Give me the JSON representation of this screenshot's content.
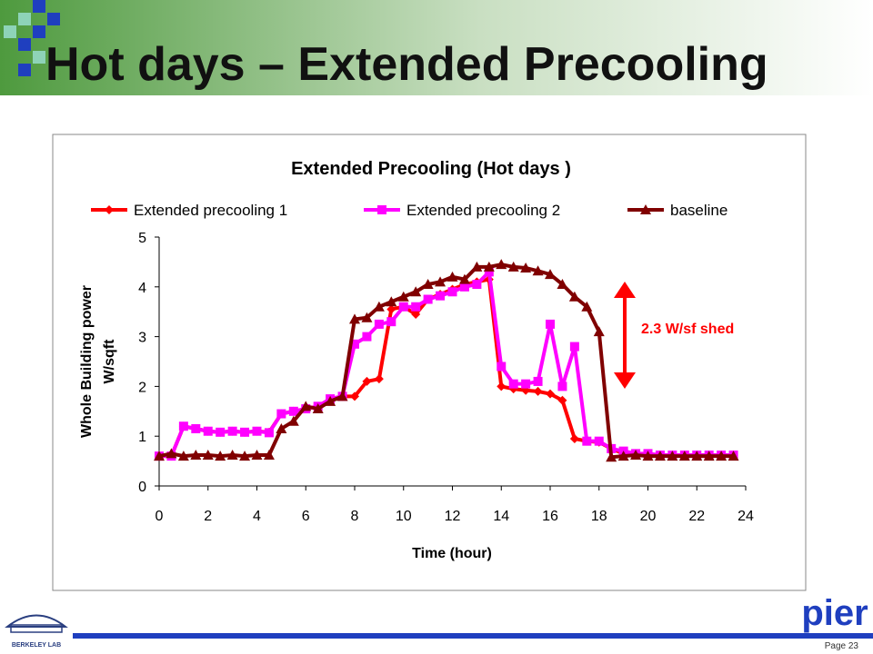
{
  "slide_title": "Hot days – Extended Precooling",
  "page_label": "Page 23",
  "logo_left": "BERKELEY LAB",
  "logo_right": "pier",
  "chart_data": {
    "type": "line",
    "title": "Extended Precooling (Hot days )",
    "x_label": "Time (hour)",
    "y_label": [
      "Whole Building power",
      "W/sqft"
    ],
    "annotation": "2.3 W/sf shed",
    "x": [
      0,
      0.5,
      1,
      1.5,
      2,
      2.5,
      3,
      3.5,
      4,
      4.5,
      5,
      5.5,
      6,
      6.5,
      7,
      7.5,
      8,
      8.5,
      9,
      9.5,
      10,
      10.5,
      11,
      11.5,
      12,
      12.5,
      13,
      13.5,
      14,
      14.5,
      15,
      15.5,
      16,
      16.5,
      17,
      17.5,
      18,
      18.5,
      19,
      19.5,
      20,
      20.5,
      21,
      21.5,
      22,
      22.5,
      23,
      23.5
    ],
    "series": [
      {
        "name": "Extended precooling 1",
        "color": "#ff0000",
        "marker": "diamond",
        "values": [
          0.6,
          0.6,
          1.2,
          1.15,
          1.1,
          1.08,
          1.1,
          1.08,
          1.1,
          1.08,
          1.45,
          1.5,
          1.55,
          1.6,
          1.75,
          1.8,
          1.8,
          2.1,
          2.15,
          3.55,
          3.6,
          3.45,
          3.75,
          3.85,
          3.95,
          4.05,
          4.1,
          4.15,
          2.0,
          1.95,
          1.92,
          1.9,
          1.85,
          1.72,
          0.95,
          0.9,
          0.88,
          0.75,
          0.65,
          0.63,
          0.62,
          0.62,
          0.62,
          0.62,
          0.62,
          0.62,
          0.62,
          0.62
        ]
      },
      {
        "name": "Extended precooling 2",
        "color": "#ff00ff",
        "marker": "square",
        "values": [
          0.6,
          0.6,
          1.2,
          1.15,
          1.1,
          1.08,
          1.1,
          1.08,
          1.1,
          1.07,
          1.45,
          1.5,
          1.55,
          1.6,
          1.75,
          1.8,
          2.85,
          3.0,
          3.25,
          3.3,
          3.6,
          3.6,
          3.75,
          3.82,
          3.9,
          4.0,
          4.05,
          4.3,
          2.4,
          2.05,
          2.05,
          2.1,
          3.25,
          2.0,
          2.8,
          0.9,
          0.9,
          0.75,
          0.7,
          0.65,
          0.65,
          0.62,
          0.62,
          0.62,
          0.62,
          0.62,
          0.62,
          0.62
        ]
      },
      {
        "name": "baseline",
        "color": "#800000",
        "marker": "triangle",
        "values": [
          0.6,
          0.65,
          0.6,
          0.62,
          0.62,
          0.6,
          0.62,
          0.6,
          0.62,
          0.62,
          1.15,
          1.3,
          1.6,
          1.55,
          1.7,
          1.8,
          3.35,
          3.38,
          3.6,
          3.7,
          3.8,
          3.9,
          4.05,
          4.1,
          4.2,
          4.15,
          4.4,
          4.4,
          4.45,
          4.4,
          4.38,
          4.32,
          4.25,
          4.05,
          3.8,
          3.6,
          3.1,
          0.58,
          0.6,
          0.62,
          0.6,
          0.6,
          0.6,
          0.6,
          0.6,
          0.6,
          0.6,
          0.6
        ]
      }
    ],
    "xlim": [
      0,
      24
    ],
    "xticks": [
      0,
      2,
      4,
      6,
      8,
      10,
      12,
      14,
      16,
      18,
      20,
      22,
      24
    ],
    "ylim": [
      0,
      5
    ],
    "yticks": [
      0,
      1,
      2,
      3,
      4,
      5
    ],
    "grid": false
  }
}
